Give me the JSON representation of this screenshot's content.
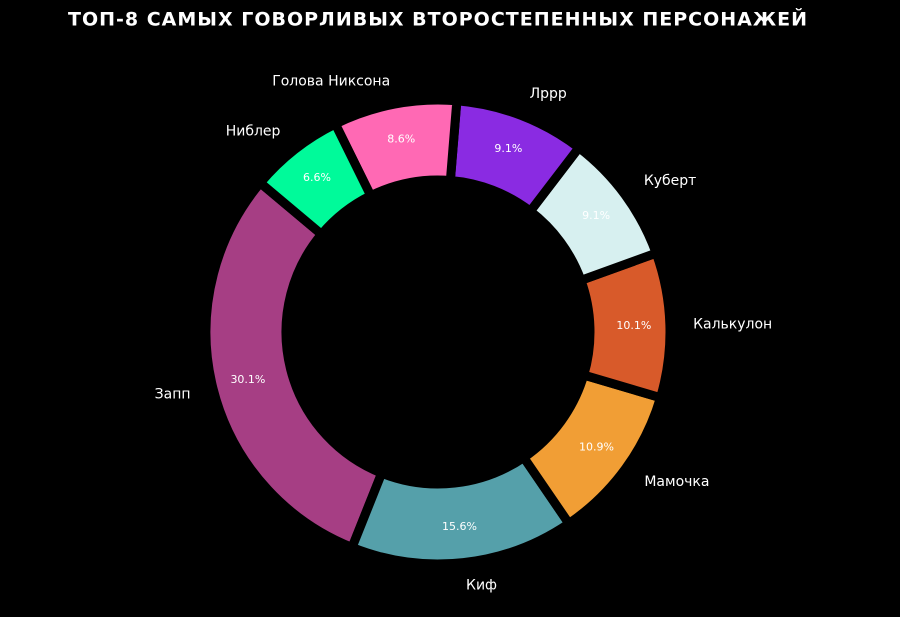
{
  "chart_data": {
    "type": "donut",
    "title": "Топ-8 самых говорливых второстепенных персонажей",
    "categories": [
      "Запп",
      "Киф",
      "Мамочка",
      "Калькулон",
      "Куберт",
      "Лррр",
      "Голова Никсона",
      "Ниблер"
    ],
    "values": [
      30.1,
      15.6,
      10.9,
      10.1,
      9.1,
      9.1,
      8.6,
      6.6
    ],
    "value_labels": [
      "30.1%",
      "15.6%",
      "10.9%",
      "10.1%",
      "9.1%",
      "9.1%",
      "8.6%",
      "6.6%"
    ],
    "colors": [
      "#a63e84",
      "#55a0aa",
      "#f19e35",
      "#d85a2a",
      "#d7f0f0",
      "#8a2be2",
      "#ff69b4",
      "#00fa9a"
    ]
  }
}
